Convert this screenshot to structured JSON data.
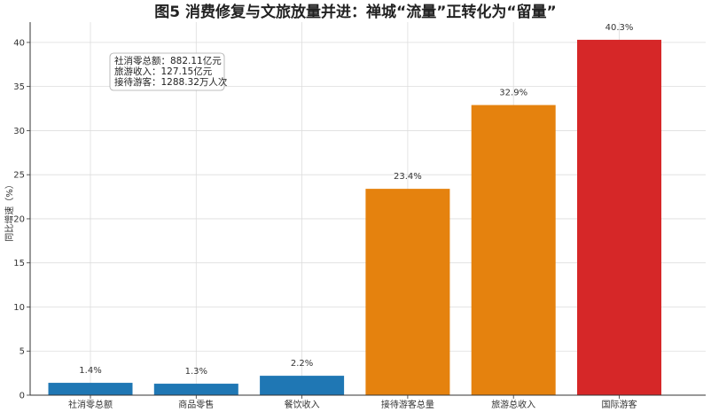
{
  "chart_data": {
    "type": "bar",
    "title": "图5 消费修复与文旅放量并进：禅城“流量”正转化为“留量”",
    "ylabel": "同比增速（%）",
    "xlabel": "",
    "categories": [
      "社消零总额",
      "商品零售",
      "餐饮收入",
      "接待游客总量",
      "旅游总收入",
      "国际游客"
    ],
    "values": [
      1.4,
      1.3,
      2.2,
      23.4,
      32.9,
      40.3
    ],
    "value_labels": [
      "1.4%",
      "1.3%",
      "2.2%",
      "23.4%",
      "32.9%",
      "40.3%"
    ],
    "colors": [
      "#1f77b4",
      "#1f77b4",
      "#1f77b4",
      "#e5820e",
      "#e5820e",
      "#d62728"
    ],
    "ylim": [
      0,
      42.3
    ],
    "yticks": [
      0,
      5,
      10,
      15,
      20,
      25,
      30,
      35,
      40
    ],
    "grid": true,
    "annotation": [
      "社消零总额：882.11亿元",
      "旅游收入：127.15亿元",
      "接待游客：1288.32万人次"
    ]
  }
}
